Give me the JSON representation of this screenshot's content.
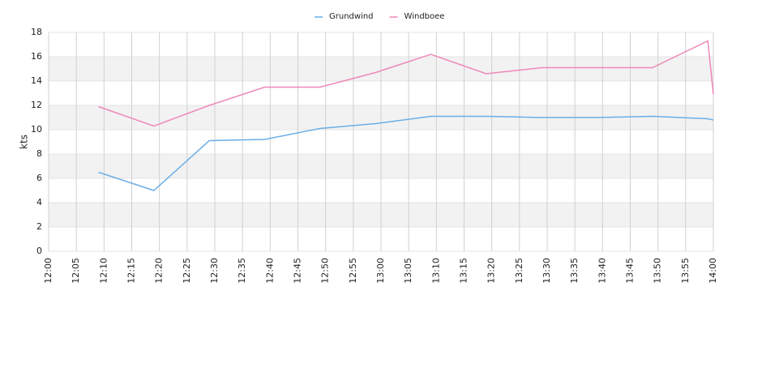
{
  "chart_data": {
    "type": "line",
    "y_label": "kts",
    "x": [
      "12:09",
      "12:19",
      "12:29",
      "12:39",
      "12:49",
      "12:59",
      "13:09",
      "13:19",
      "13:29",
      "13:39",
      "13:49",
      "13:59",
      "14:00"
    ],
    "series": [
      {
        "name": "Grundwind",
        "color": "#6aaee8",
        "values": [
          6.5,
          5.0,
          9.1,
          9.2,
          10.1,
          10.5,
          11.1,
          11.1,
          11.0,
          11.0,
          11.1,
          10.9,
          10.8
        ]
      },
      {
        "name": "Windboee",
        "color": "#ee88b8",
        "values": [
          11.9,
          10.3,
          12.0,
          13.5,
          13.5,
          14.7,
          16.2,
          14.6,
          15.1,
          15.1,
          15.1,
          17.3,
          12.9
        ]
      }
    ],
    "xlim": [
      "12:00",
      "14:00"
    ],
    "xticks": [
      "12:00",
      "12:05",
      "12:10",
      "12:15",
      "12:20",
      "12:25",
      "12:30",
      "12:35",
      "12:40",
      "12:45",
      "12:50",
      "12:55",
      "13:00",
      "13:05",
      "13:10",
      "13:15",
      "13:20",
      "13:25",
      "13:30",
      "13:35",
      "13:40",
      "13:45",
      "13:50",
      "13:55",
      "14:00"
    ],
    "ylim": [
      0,
      18
    ],
    "yticks": [
      0,
      2,
      4,
      6,
      8,
      10,
      12,
      14,
      16,
      18
    ],
    "grid": true,
    "alternate_bands": true,
    "legend": "top"
  }
}
